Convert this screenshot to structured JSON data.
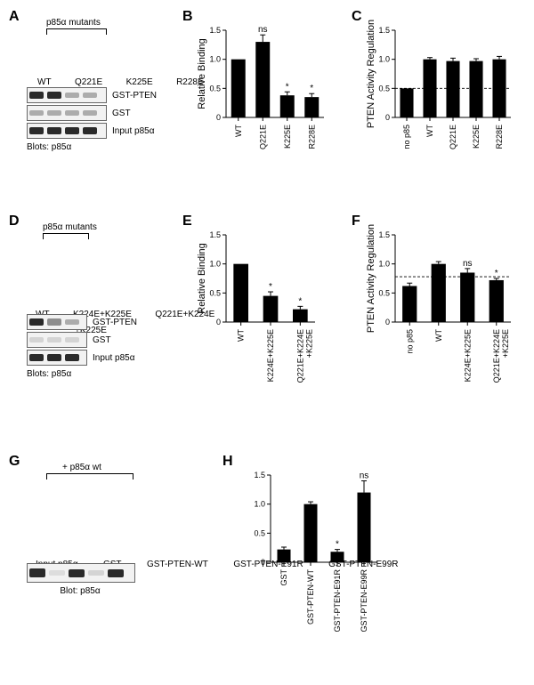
{
  "panelA": {
    "label": "A",
    "header": "p85α mutants",
    "lanes": [
      "WT",
      "Q221E",
      "K225E",
      "R228E"
    ],
    "rows": [
      {
        "label": "GST-PTEN",
        "bands": [
          1.0,
          1.0,
          0.35,
          0.35
        ]
      },
      {
        "label": "GST",
        "bands": [
          0.2,
          0.2,
          0.2,
          0.2
        ]
      },
      {
        "label": "Input p85α",
        "bands": [
          1.0,
          1.0,
          1.0,
          1.0
        ]
      }
    ],
    "caption": "Blots: p85α"
  },
  "panelB": {
    "label": "B",
    "ylabel": "Relative Binding",
    "ylim": [
      0,
      1.5
    ],
    "ytick_step": 0.5,
    "categories": [
      "WT",
      "Q221E",
      "K225E",
      "R228E"
    ],
    "values": [
      1.0,
      1.3,
      0.38,
      0.35
    ],
    "errors": [
      0,
      0.12,
      0.06,
      0.06
    ],
    "sig": [
      "",
      "ns",
      "*",
      "*"
    ],
    "bar_width": 0.58,
    "color": "#000000"
  },
  "panelC": {
    "label": "C",
    "ylabel": "PTEN Activity Regulation",
    "ylim": [
      0,
      1.5
    ],
    "ytick_step": 0.5,
    "categories": [
      "no p85",
      "WT",
      "Q221E",
      "K225E",
      "R228E"
    ],
    "values": [
      0.5,
      1.0,
      0.97,
      0.97,
      1.0
    ],
    "errors": [
      0,
      0.03,
      0.05,
      0.04,
      0.05
    ],
    "sig": [
      "",
      "",
      "",
      "",
      ""
    ],
    "hline": 0.5,
    "bar_width": 0.58,
    "color": "#000000"
  },
  "panelD": {
    "label": "D",
    "header": "p85α mutants",
    "lanes": [
      "WT",
      "K224E+K225E",
      "Q221E+K224E\n+K225E"
    ],
    "rows": [
      {
        "label": "GST-PTEN",
        "bands": [
          1.0,
          0.45,
          0.25
        ]
      },
      {
        "label": "GST",
        "bands": [
          0.1,
          0.1,
          0.1
        ]
      },
      {
        "label": "Input p85α",
        "bands": [
          1.0,
          1.0,
          1.0
        ]
      }
    ],
    "caption": "Blots: p85α"
  },
  "panelE": {
    "label": "E",
    "ylabel": "Relative Binding",
    "ylim": [
      0,
      1.5
    ],
    "ytick_step": 0.5,
    "categories": [
      "WT",
      "K224E+K225E",
      "Q221E+K224E\n+K225E"
    ],
    "values": [
      1.0,
      0.45,
      0.22
    ],
    "errors": [
      0,
      0.07,
      0.05
    ],
    "sig": [
      "",
      "*",
      "*"
    ],
    "bar_width": 0.5,
    "color": "#000000"
  },
  "panelF": {
    "label": "F",
    "ylabel": "PTEN Activity Regulation",
    "ylim": [
      0,
      1.5
    ],
    "ytick_step": 0.5,
    "categories": [
      "no p85",
      "WT",
      "K224E+K225E",
      "Q221E+K224E\n+K225E"
    ],
    "values": [
      0.62,
      1.0,
      0.85,
      0.72
    ],
    "errors": [
      0.05,
      0.04,
      0.07,
      0.03
    ],
    "sig": [
      "",
      "",
      "ns",
      "*"
    ],
    "hline": 0.78,
    "bar_width": 0.5,
    "color": "#000000"
  },
  "panelG": {
    "label": "G",
    "header": "+ p85α wt",
    "lanes": [
      "Input p85α",
      "GST",
      "GST-PTEN-WT",
      "GST-PTEN-E91R",
      "GST-PTEN-E99R"
    ],
    "row": {
      "label": "Blot: p85α",
      "bands": [
        1.0,
        0.1,
        0.9,
        0.15,
        0.9
      ]
    }
  },
  "panelH": {
    "label": "H",
    "ylabel": "",
    "ylim": [
      0,
      1.5
    ],
    "ytick_step": 0.5,
    "categories": [
      "GST",
      "GST-PTEN-WT",
      "GST-PTEN-E91R",
      "GST-PTEN-E99R"
    ],
    "values": [
      0.22,
      1.0,
      0.18,
      1.2
    ],
    "errors": [
      0.04,
      0.04,
      0.04,
      0.2
    ],
    "sig": [
      "",
      "",
      "*",
      "ns"
    ],
    "bar_width": 0.5,
    "color": "#000000"
  }
}
